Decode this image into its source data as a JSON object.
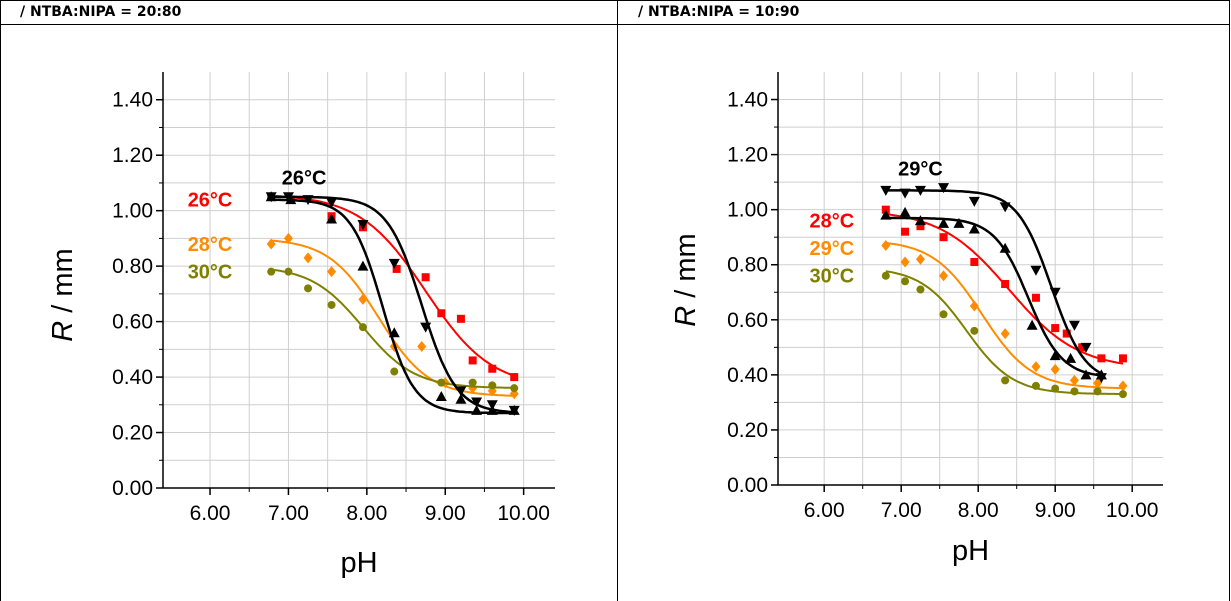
{
  "panels": [
    {
      "header": "/ NTBA:NIPA = 20:80",
      "chart_data": {
        "type": "scatter",
        "xlabel": "pH",
        "ylabel_italic": "R",
        "ylabel_unit": " / mm",
        "xlim": [
          5.4,
          10.4
        ],
        "ylim": [
          0.0,
          1.5
        ],
        "xticks": [
          6.0,
          7.0,
          8.0,
          9.0,
          10.0
        ],
        "xtick_labels": [
          "6.00",
          "7.00",
          "8.00",
          "9.00",
          "10.00"
        ],
        "yticks": [
          0.0,
          0.2,
          0.4,
          0.6,
          0.8,
          1.0,
          1.2,
          1.4
        ],
        "ytick_labels": [
          "0.00",
          "0.20",
          "0.40",
          "0.60",
          "0.80",
          "1.00",
          "1.20",
          "1.40"
        ],
        "grid": true,
        "labels": [
          {
            "text": "26°C",
            "x": 6.0,
            "y": 1.04,
            "color": "#ff0000"
          },
          {
            "text": "28°C",
            "x": 6.0,
            "y": 0.88,
            "color": "#ff8c00"
          },
          {
            "text": "30°C",
            "x": 6.0,
            "y": 0.78,
            "color": "#808000"
          },
          {
            "text": "26°C",
            "x": 7.2,
            "y": 1.12,
            "color": "#000000"
          }
        ],
        "series": [
          {
            "color": "#ff0000",
            "marker": "square",
            "x": [
              6.78,
              7.03,
              7.55,
              7.95,
              8.38,
              8.75,
              8.95,
              9.2,
              9.35,
              9.6,
              9.88
            ],
            "y": [
              1.05,
              1.04,
              0.98,
              0.94,
              0.79,
              0.76,
              0.63,
              0.61,
              0.46,
              0.43,
              0.4
            ],
            "fit": {
              "top": 1.06,
              "bottom": 0.36,
              "x0": 8.75,
              "k": 0.42
            }
          },
          {
            "color": "#ff8c00",
            "marker": "diamond",
            "x": [
              6.78,
              7.0,
              7.25,
              7.55,
              7.95,
              8.35,
              8.7,
              9.0,
              9.35,
              9.6,
              9.88
            ],
            "y": [
              0.88,
              0.9,
              0.83,
              0.78,
              0.68,
              0.51,
              0.51,
              0.38,
              0.36,
              0.35,
              0.34
            ],
            "fit": {
              "top": 0.9,
              "bottom": 0.33,
              "x0": 8.15,
              "k": 0.32
            }
          },
          {
            "color": "#808000",
            "marker": "circle",
            "x": [
              6.78,
              7.0,
              7.25,
              7.55,
              7.95,
              8.35,
              8.95,
              9.35,
              9.6,
              9.88
            ],
            "y": [
              0.78,
              0.78,
              0.72,
              0.66,
              0.58,
              0.42,
              0.38,
              0.38,
              0.37,
              0.36
            ],
            "fit": {
              "top": 0.8,
              "bottom": 0.36,
              "x0": 7.95,
              "k": 0.33
            }
          },
          {
            "color": "#000000",
            "marker": "triangle-up",
            "x": [
              6.78,
              7.03,
              7.55,
              7.95,
              8.35,
              8.95,
              9.2,
              9.4,
              9.6,
              9.88
            ],
            "y": [
              1.05,
              1.04,
              0.97,
              0.8,
              0.56,
              0.33,
              0.32,
              0.28,
              0.28,
              0.28
            ],
            "fit": {
              "top": 1.04,
              "bottom": 0.27,
              "x0": 8.2,
              "k": 0.2
            }
          },
          {
            "color": "#000000",
            "marker": "triangle-down",
            "x": [
              6.78,
              7.0,
              7.25,
              7.55,
              7.95,
              8.35,
              8.75,
              9.2,
              9.4,
              9.6,
              9.88
            ],
            "y": [
              1.05,
              1.05,
              1.04,
              1.03,
              0.95,
              0.81,
              0.58,
              0.35,
              0.31,
              0.3,
              0.28
            ],
            "fit": {
              "top": 1.05,
              "bottom": 0.27,
              "x0": 8.7,
              "k": 0.22
            }
          }
        ]
      }
    },
    {
      "header": "/ NTBA:NIPA = 10:90",
      "chart_data": {
        "type": "scatter",
        "xlabel": "pH",
        "ylabel_italic": "R",
        "ylabel_unit": " / mm",
        "xlim": [
          5.4,
          10.4
        ],
        "ylim": [
          0.0,
          1.5
        ],
        "xticks": [
          6.0,
          7.0,
          8.0,
          9.0,
          10.0
        ],
        "xtick_labels": [
          "6.00",
          "7.00",
          "8.00",
          "9.00",
          "10.00"
        ],
        "yticks": [
          0.0,
          0.2,
          0.4,
          0.6,
          0.8,
          1.0,
          1.2,
          1.4
        ],
        "ytick_labels": [
          "0.00",
          "0.20",
          "0.40",
          "0.60",
          "0.80",
          "1.00",
          "1.20",
          "1.40"
        ],
        "grid": true,
        "labels": [
          {
            "text": "28°C",
            "x": 6.1,
            "y": 0.96,
            "color": "#ff0000"
          },
          {
            "text": "29°C",
            "x": 6.1,
            "y": 0.86,
            "color": "#ff8c00"
          },
          {
            "text": "30°C",
            "x": 6.1,
            "y": 0.76,
            "color": "#808000"
          },
          {
            "text": "29°C",
            "x": 7.25,
            "y": 1.15,
            "color": "#000000"
          }
        ],
        "series": [
          {
            "color": "#ff0000",
            "marker": "square",
            "x": [
              6.8,
              7.05,
              7.25,
              7.55,
              7.95,
              8.35,
              8.75,
              9.0,
              9.15,
              9.35,
              9.6,
              9.88
            ],
            "y": [
              1.0,
              0.92,
              0.94,
              0.9,
              0.81,
              0.73,
              0.68,
              0.57,
              0.55,
              0.5,
              0.46,
              0.46
            ],
            "fit": {
              "top": 1.0,
              "bottom": 0.42,
              "x0": 8.4,
              "k": 0.45
            }
          },
          {
            "color": "#ff8c00",
            "marker": "diamond",
            "x": [
              6.8,
              7.05,
              7.25,
              7.55,
              7.95,
              8.35,
              8.75,
              9.0,
              9.25,
              9.55,
              9.88
            ],
            "y": [
              0.87,
              0.81,
              0.82,
              0.76,
              0.65,
              0.55,
              0.43,
              0.42,
              0.38,
              0.37,
              0.36
            ],
            "fit": {
              "top": 0.89,
              "bottom": 0.35,
              "x0": 8.05,
              "k": 0.32
            }
          },
          {
            "color": "#808000",
            "marker": "circle",
            "x": [
              6.8,
              7.05,
              7.25,
              7.55,
              7.95,
              8.35,
              8.75,
              9.0,
              9.25,
              9.55,
              9.88
            ],
            "y": [
              0.76,
              0.74,
              0.71,
              0.62,
              0.56,
              0.38,
              0.36,
              0.35,
              0.34,
              0.34,
              0.33
            ],
            "fit": {
              "top": 0.79,
              "bottom": 0.33,
              "x0": 7.85,
              "k": 0.3
            }
          },
          {
            "color": "#000000",
            "marker": "triangle-up",
            "x": [
              6.8,
              7.05,
              7.25,
              7.55,
              7.75,
              7.95,
              8.35,
              8.7,
              9.0,
              9.2,
              9.4,
              9.6
            ],
            "y": [
              0.98,
              0.99,
              0.96,
              0.95,
              0.95,
              0.93,
              0.86,
              0.58,
              0.47,
              0.46,
              0.4,
              0.4
            ],
            "fit": {
              "top": 0.97,
              "bottom": 0.39,
              "x0": 8.65,
              "k": 0.22
            }
          },
          {
            "color": "#000000",
            "marker": "triangle-down",
            "x": [
              6.8,
              7.05,
              7.25,
              7.55,
              7.95,
              8.35,
              8.75,
              9.0,
              9.25,
              9.4,
              9.6
            ],
            "y": [
              1.07,
              1.06,
              1.07,
              1.08,
              1.03,
              1.01,
              0.78,
              0.7,
              0.58,
              0.5,
              0.39
            ],
            "fit": {
              "top": 1.07,
              "bottom": 0.37,
              "x0": 8.95,
              "k": 0.22
            }
          }
        ]
      }
    }
  ]
}
